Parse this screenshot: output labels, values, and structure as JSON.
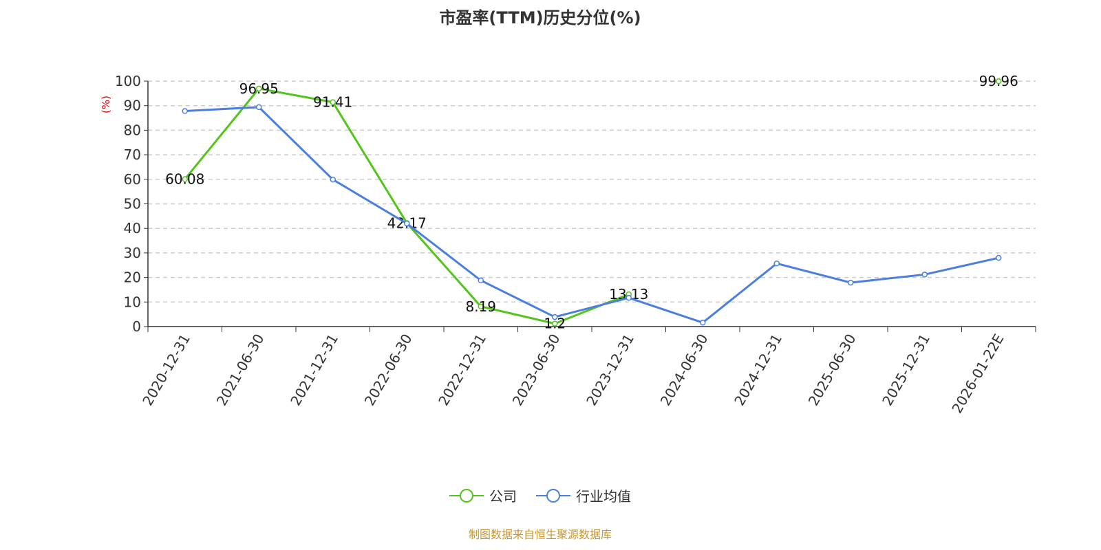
{
  "chart_data": {
    "type": "line",
    "title": "市盈率(TTM)历史分位(%)",
    "xlabel": "",
    "ylabel": "(%)",
    "ylim": [
      0,
      100
    ],
    "yticks": [
      0,
      10,
      20,
      30,
      40,
      50,
      60,
      70,
      80,
      90,
      100
    ],
    "grid": true,
    "legend_position": "bottom",
    "categories": [
      "2020-12-31",
      "2021-06-30",
      "2021-12-31",
      "2022-06-30",
      "2022-12-31",
      "2023-06-30",
      "2023-12-31",
      "2024-06-30",
      "2024-12-31",
      "2025-06-30",
      "2025-12-31",
      "2026-01-22E"
    ],
    "series": [
      {
        "name": "公司",
        "color": "#52c41a",
        "labels": true,
        "values": [
          60.08,
          96.95,
          91.41,
          42.17,
          8.19,
          1.2,
          13.13,
          null,
          null,
          null,
          null,
          99.96
        ]
      },
      {
        "name": "行业均值",
        "color": "#4a7fe0",
        "labels": false,
        "values": [
          87.8,
          89.4,
          59.9,
          42.0,
          18.8,
          3.9,
          11.7,
          1.6,
          25.7,
          17.9,
          21.2,
          28.0
        ]
      }
    ]
  },
  "source": "制图数据来自恒生聚源数据库"
}
